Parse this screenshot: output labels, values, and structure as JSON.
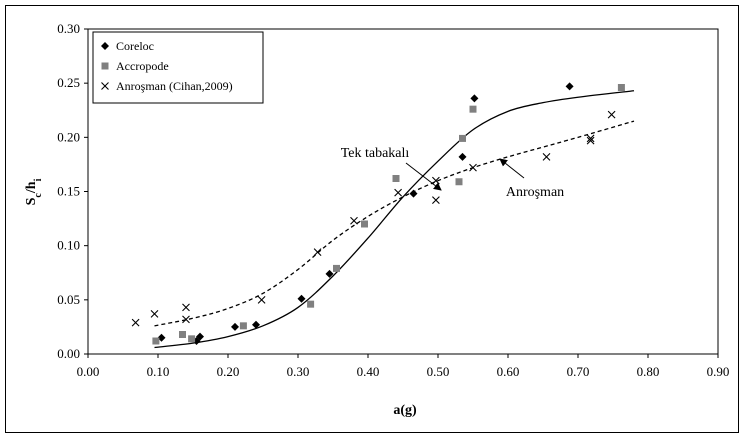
{
  "chart_data": {
    "type": "scatter",
    "xlabel": "a(g)",
    "ylabel_main": "S",
    "ylabel_sub1": "c",
    "ylabel_mid": "/h",
    "ylabel_sub2": "i",
    "xlim": [
      0,
      0.9
    ],
    "ylim": [
      0,
      0.3
    ],
    "xticks": [
      "0.00",
      "0.10",
      "0.20",
      "0.30",
      "0.40",
      "0.50",
      "0.60",
      "0.70",
      "0.80",
      "0.90"
    ],
    "yticks": [
      "0.00",
      "0.05",
      "0.10",
      "0.15",
      "0.20",
      "0.25",
      "0.30"
    ],
    "grid": false,
    "legend_position": "top-left",
    "series": [
      {
        "name": "Coreloc",
        "marker": "diamond",
        "color": "#000000",
        "points": [
          [
            0.105,
            0.015
          ],
          [
            0.155,
            0.012
          ],
          [
            0.16,
            0.016
          ],
          [
            0.21,
            0.025
          ],
          [
            0.24,
            0.027
          ],
          [
            0.305,
            0.051
          ],
          [
            0.345,
            0.074
          ],
          [
            0.465,
            0.148
          ],
          [
            0.535,
            0.182
          ],
          [
            0.552,
            0.236
          ],
          [
            0.688,
            0.247
          ]
        ]
      },
      {
        "name": "Accropode",
        "marker": "square",
        "color": "#808080",
        "points": [
          [
            0.097,
            0.012
          ],
          [
            0.135,
            0.018
          ],
          [
            0.148,
            0.014
          ],
          [
            0.222,
            0.026
          ],
          [
            0.318,
            0.046
          ],
          [
            0.355,
            0.079
          ],
          [
            0.395,
            0.12
          ],
          [
            0.44,
            0.162
          ],
          [
            0.53,
            0.159
          ],
          [
            0.535,
            0.199
          ],
          [
            0.55,
            0.226
          ],
          [
            0.762,
            0.246
          ]
        ]
      },
      {
        "name": "Anroşman (Cihan,2009)",
        "marker": "x",
        "color": "#000000",
        "points": [
          [
            0.068,
            0.029
          ],
          [
            0.095,
            0.037
          ],
          [
            0.14,
            0.043
          ],
          [
            0.14,
            0.032
          ],
          [
            0.248,
            0.05
          ],
          [
            0.328,
            0.094
          ],
          [
            0.38,
            0.123
          ],
          [
            0.443,
            0.149
          ],
          [
            0.497,
            0.16
          ],
          [
            0.497,
            0.142
          ],
          [
            0.55,
            0.172
          ],
          [
            0.655,
            0.182
          ],
          [
            0.718,
            0.199
          ],
          [
            0.718,
            0.197
          ],
          [
            0.748,
            0.221
          ]
        ]
      }
    ],
    "curves": [
      {
        "label": "Tek tabakalı",
        "style": "solid",
        "points": [
          [
            0.095,
            0.006
          ],
          [
            0.15,
            0.01
          ],
          [
            0.2,
            0.016
          ],
          [
            0.25,
            0.026
          ],
          [
            0.3,
            0.043
          ],
          [
            0.35,
            0.072
          ],
          [
            0.4,
            0.107
          ],
          [
            0.45,
            0.145
          ],
          [
            0.5,
            0.178
          ],
          [
            0.55,
            0.207
          ],
          [
            0.6,
            0.224
          ],
          [
            0.65,
            0.232
          ],
          [
            0.7,
            0.237
          ],
          [
            0.78,
            0.243
          ]
        ]
      },
      {
        "label": "Anroşman",
        "style": "dashed",
        "points": [
          [
            0.095,
            0.026
          ],
          [
            0.15,
            0.033
          ],
          [
            0.2,
            0.042
          ],
          [
            0.25,
            0.056
          ],
          [
            0.3,
            0.078
          ],
          [
            0.35,
            0.105
          ],
          [
            0.4,
            0.127
          ],
          [
            0.45,
            0.145
          ],
          [
            0.5,
            0.16
          ],
          [
            0.55,
            0.172
          ],
          [
            0.6,
            0.182
          ],
          [
            0.65,
            0.191
          ],
          [
            0.7,
            0.2
          ],
          [
            0.78,
            0.215
          ]
        ]
      }
    ],
    "annotations": {
      "tek_label": "Tek tabakalı",
      "anrosman_label": "Anroşman"
    }
  }
}
